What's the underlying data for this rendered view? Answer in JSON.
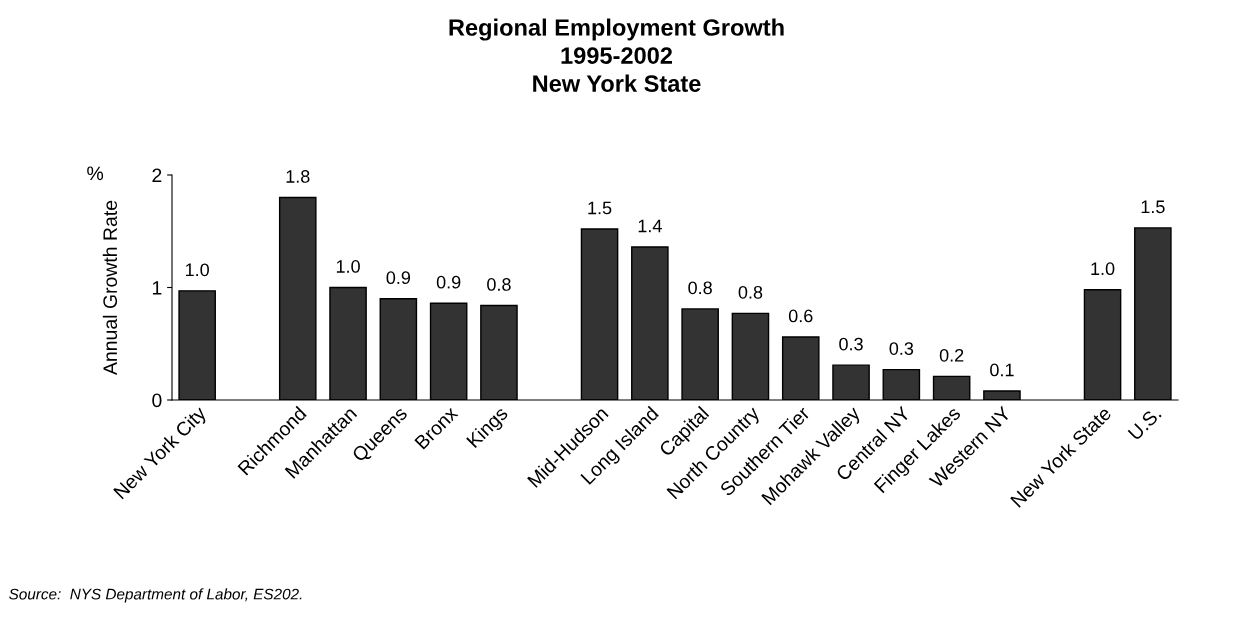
{
  "chart_data": {
    "type": "bar",
    "title": "Regional Employment Growth\n1995-2002\nNew York State",
    "ylabel": "Annual Growth Rate",
    "categories": [
      "New York City",
      null,
      "Richmond",
      "Manhattan",
      "Queens",
      "Bronx",
      "Kings",
      null,
      "Mid-Hudson",
      "Long Island",
      "Capital",
      "North Country",
      "Southern Tier",
      "Mohawk Valley",
      "Central NY",
      "Finger Lakes",
      "Western NY",
      null,
      "New York State",
      "U.S."
    ],
    "values": [
      0.97,
      null,
      1.8,
      1.0,
      0.9,
      0.86,
      0.84,
      null,
      1.52,
      1.36,
      0.81,
      0.77,
      0.56,
      0.31,
      0.27,
      0.21,
      0.08,
      null,
      0.98,
      1.53
    ],
    "value_labels": [
      "1.0",
      null,
      "1.8",
      "1.0",
      "0.9",
      "0.9",
      "0.8",
      null,
      "1.5",
      "1.4",
      "0.8",
      "0.8",
      "0.6",
      "0.3",
      "0.3",
      "0.2",
      "0.1",
      null,
      "1.0",
      "1.5"
    ],
    "color": "#333333",
    "ylim": [
      0,
      2
    ],
    "yticks": [
      0,
      1,
      2
    ],
    "grid": false,
    "legend": false,
    "annotations": [
      "%",
      "Source:  NYS Department of Labor, ES202."
    ]
  }
}
